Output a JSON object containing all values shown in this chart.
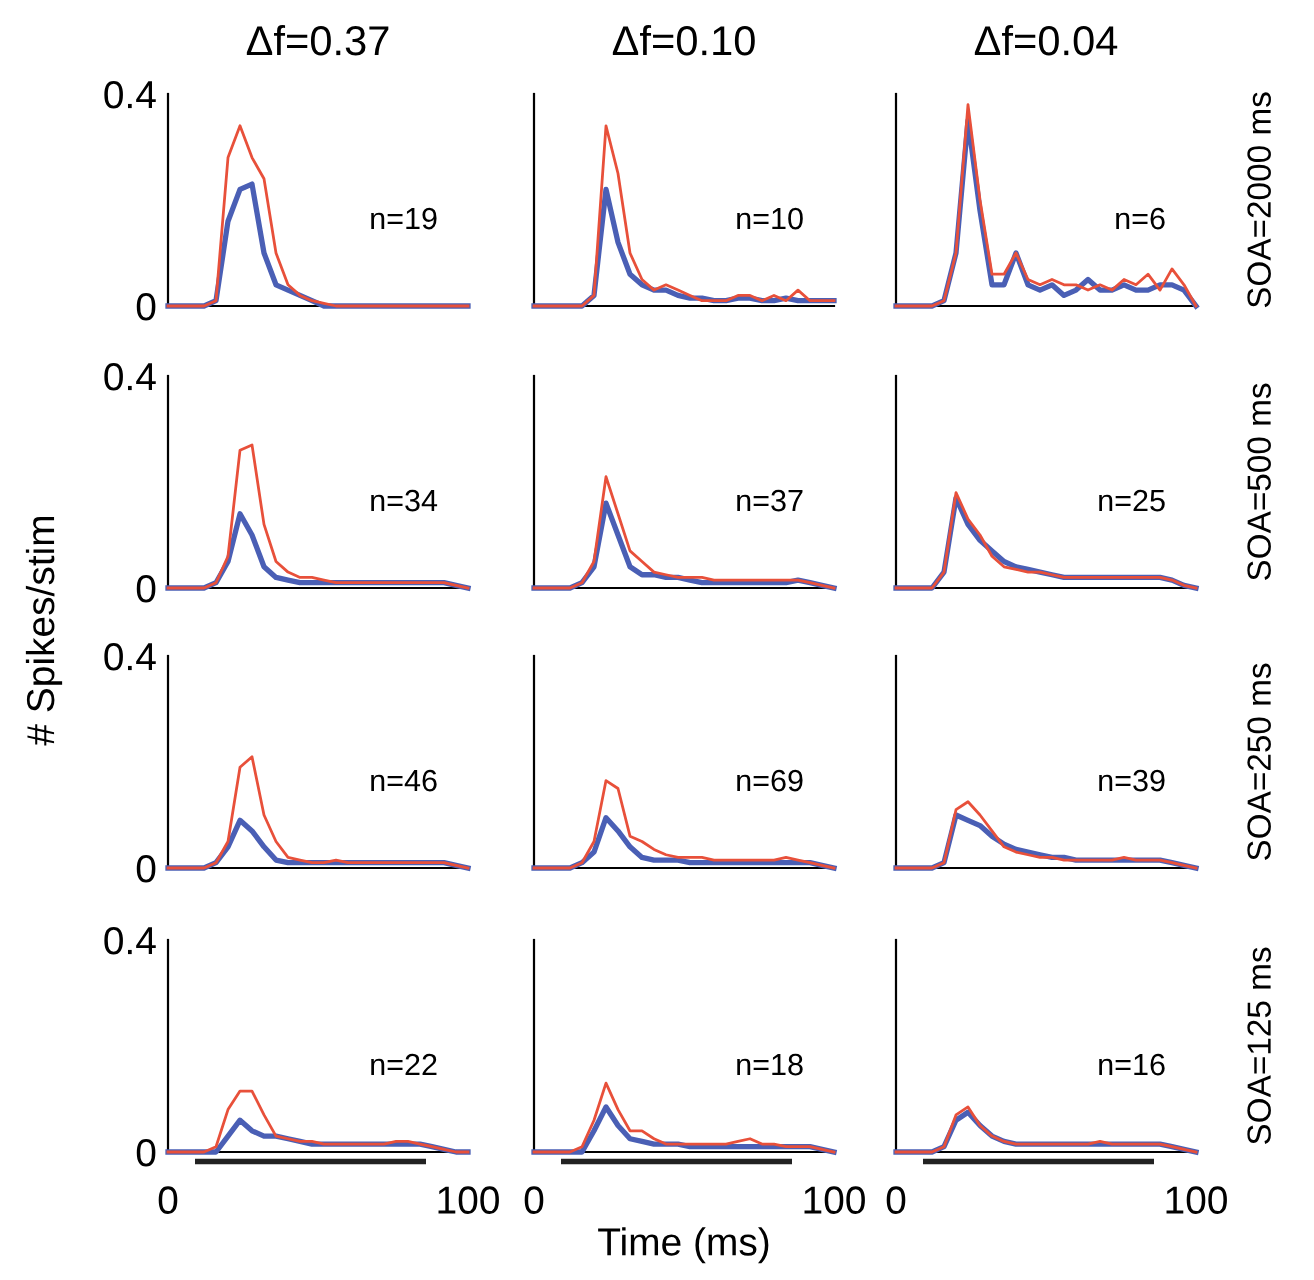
{
  "chart_data": [
    {
      "type": "line",
      "title": "Δf=0.37",
      "x": [
        0,
        4,
        8,
        12,
        16,
        20,
        24,
        28,
        32,
        36,
        40,
        44,
        48,
        52,
        56,
        60,
        64,
        68,
        72,
        76,
        80,
        84,
        88,
        92,
        96,
        100
      ],
      "xlim": [
        0,
        100
      ],
      "ylim": [
        0,
        0.4
      ],
      "xticks": [
        0,
        100
      ],
      "yticks": [
        0,
        0.4
      ],
      "tick_labels": "y",
      "annotations": [
        "n=19"
      ],
      "series": [
        {
          "color": "#e8503a",
          "values": [
            0,
            0,
            0,
            0,
            0.01,
            0.28,
            0.34,
            0.28,
            0.24,
            0.1,
            0.04,
            0.02,
            0.01,
            0.005,
            0,
            0,
            0,
            0,
            0,
            0,
            0,
            0,
            0,
            0,
            0,
            0
          ]
        },
        {
          "color": "#4a5fb5",
          "values": [
            0,
            0,
            0,
            0,
            0.01,
            0.16,
            0.22,
            0.23,
            0.1,
            0.04,
            0.03,
            0.02,
            0.01,
            0,
            0,
            0,
            0,
            0,
            0,
            0,
            0,
            0,
            0,
            0,
            0,
            0
          ]
        }
      ]
    },
    {
      "type": "line",
      "title": "Δf=0.10",
      "x": [
        0,
        4,
        8,
        12,
        16,
        20,
        24,
        28,
        32,
        36,
        40,
        44,
        48,
        52,
        56,
        60,
        64,
        68,
        72,
        76,
        80,
        84,
        88,
        92,
        96,
        100
      ],
      "xlim": [
        0,
        100
      ],
      "ylim": [
        0,
        0.4
      ],
      "xticks": [
        0,
        100
      ],
      "yticks": [
        0,
        0.4
      ],
      "tick_labels": false,
      "annotations": [
        "n=10"
      ],
      "series": [
        {
          "color": "#e8503a",
          "values": [
            0,
            0,
            0,
            0,
            0,
            0.02,
            0.34,
            0.25,
            0.1,
            0.05,
            0.03,
            0.04,
            0.03,
            0.02,
            0.01,
            0.01,
            0.01,
            0.02,
            0.02,
            0.01,
            0.02,
            0.01,
            0.03,
            0.01,
            0.01,
            0.01
          ]
        },
        {
          "color": "#4a5fb5",
          "values": [
            0,
            0,
            0,
            0,
            0,
            0.02,
            0.22,
            0.12,
            0.06,
            0.04,
            0.03,
            0.03,
            0.02,
            0.015,
            0.015,
            0.01,
            0.01,
            0.015,
            0.015,
            0.01,
            0.01,
            0.015,
            0.01,
            0.01,
            0.01,
            0.01
          ]
        }
      ]
    },
    {
      "type": "line",
      "title": "Δf=0.04",
      "x": [
        0,
        4,
        8,
        12,
        16,
        20,
        24,
        28,
        32,
        36,
        40,
        44,
        48,
        52,
        56,
        60,
        64,
        68,
        72,
        76,
        80,
        84,
        88,
        92,
        96,
        100
      ],
      "xlim": [
        0,
        100
      ],
      "ylim": [
        0,
        0.4
      ],
      "xticks": [
        0,
        100
      ],
      "yticks": [
        0,
        0.4
      ],
      "tick_labels": false,
      "annotations": [
        "n=6",
        "SOA=2000 ms"
      ],
      "series": [
        {
          "color": "#e8503a",
          "values": [
            0,
            0,
            0,
            0,
            0.01,
            0.1,
            0.38,
            0.2,
            0.06,
            0.06,
            0.1,
            0.05,
            0.04,
            0.05,
            0.04,
            0.04,
            0.03,
            0.04,
            0.03,
            0.05,
            0.04,
            0.06,
            0.03,
            0.07,
            0.04,
            0
          ]
        },
        {
          "color": "#4a5fb5",
          "values": [
            0,
            0,
            0,
            0,
            0.01,
            0.1,
            0.35,
            0.18,
            0.04,
            0.04,
            0.1,
            0.04,
            0.03,
            0.04,
            0.02,
            0.03,
            0.05,
            0.03,
            0.03,
            0.04,
            0.03,
            0.03,
            0.04,
            0.04,
            0.03,
            0
          ]
        }
      ]
    },
    {
      "type": "line",
      "x": [
        0,
        4,
        8,
        12,
        16,
        20,
        24,
        28,
        32,
        36,
        40,
        44,
        48,
        52,
        56,
        60,
        64,
        68,
        72,
        76,
        80,
        84,
        88,
        92,
        96,
        100
      ],
      "xlim": [
        0,
        100
      ],
      "ylim": [
        0,
        0.4
      ],
      "xticks": [
        0,
        100
      ],
      "yticks": [
        0,
        0.4
      ],
      "tick_labels": "y",
      "annotations": [
        "n=34"
      ],
      "ylabel": "# Spikes/stim",
      "series": [
        {
          "color": "#e8503a",
          "values": [
            0,
            0,
            0,
            0,
            0.01,
            0.06,
            0.26,
            0.27,
            0.12,
            0.05,
            0.03,
            0.02,
            0.02,
            0.015,
            0.01,
            0.01,
            0.01,
            0.01,
            0.01,
            0.01,
            0.01,
            0.01,
            0.01,
            0.01,
            0.005,
            0
          ]
        },
        {
          "color": "#4a5fb5",
          "values": [
            0,
            0,
            0,
            0,
            0.01,
            0.05,
            0.14,
            0.1,
            0.04,
            0.02,
            0.015,
            0.01,
            0.01,
            0.01,
            0.01,
            0.01,
            0.01,
            0.01,
            0.01,
            0.01,
            0.01,
            0.01,
            0.01,
            0.01,
            0.005,
            0
          ]
        }
      ]
    },
    {
      "type": "line",
      "x": [
        0,
        4,
        8,
        12,
        16,
        20,
        24,
        28,
        32,
        36,
        40,
        44,
        48,
        52,
        56,
        60,
        64,
        68,
        72,
        76,
        80,
        84,
        88,
        92,
        96,
        100
      ],
      "xlim": [
        0,
        100
      ],
      "ylim": [
        0,
        0.4
      ],
      "xticks": [
        0,
        100
      ],
      "yticks": [
        0,
        0.4
      ],
      "tick_labels": false,
      "annotations": [
        "n=37"
      ],
      "series": [
        {
          "color": "#e8503a",
          "values": [
            0,
            0,
            0,
            0,
            0.01,
            0.05,
            0.21,
            0.14,
            0.07,
            0.05,
            0.03,
            0.025,
            0.02,
            0.02,
            0.02,
            0.015,
            0.015,
            0.015,
            0.015,
            0.015,
            0.015,
            0.015,
            0.015,
            0.01,
            0.005,
            0
          ]
        },
        {
          "color": "#4a5fb5",
          "values": [
            0,
            0,
            0,
            0,
            0.01,
            0.04,
            0.16,
            0.1,
            0.04,
            0.025,
            0.025,
            0.02,
            0.02,
            0.015,
            0.01,
            0.01,
            0.01,
            0.01,
            0.01,
            0.01,
            0.01,
            0.01,
            0.015,
            0.01,
            0.005,
            0
          ]
        }
      ]
    },
    {
      "type": "line",
      "x": [
        0,
        4,
        8,
        12,
        16,
        20,
        24,
        28,
        32,
        36,
        40,
        44,
        48,
        52,
        56,
        60,
        64,
        68,
        72,
        76,
        80,
        84,
        88,
        92,
        96,
        100
      ],
      "xlim": [
        0,
        100
      ],
      "ylim": [
        0,
        0.4
      ],
      "xticks": [
        0,
        100
      ],
      "yticks": [
        0,
        0.4
      ],
      "tick_labels": false,
      "annotations": [
        "n=25",
        "SOA=500 ms"
      ],
      "series": [
        {
          "color": "#e8503a",
          "values": [
            0,
            0,
            0,
            0,
            0.03,
            0.18,
            0.13,
            0.1,
            0.06,
            0.04,
            0.035,
            0.03,
            0.03,
            0.025,
            0.02,
            0.02,
            0.02,
            0.02,
            0.02,
            0.02,
            0.02,
            0.02,
            0.02,
            0.015,
            0.005,
            0
          ]
        },
        {
          "color": "#4a5fb5",
          "values": [
            0,
            0,
            0,
            0,
            0.03,
            0.17,
            0.12,
            0.09,
            0.07,
            0.05,
            0.04,
            0.035,
            0.03,
            0.025,
            0.02,
            0.02,
            0.02,
            0.02,
            0.02,
            0.02,
            0.02,
            0.02,
            0.02,
            0.015,
            0.005,
            0
          ]
        }
      ]
    },
    {
      "type": "line",
      "x": [
        0,
        4,
        8,
        12,
        16,
        20,
        24,
        28,
        32,
        36,
        40,
        44,
        48,
        52,
        56,
        60,
        64,
        68,
        72,
        76,
        80,
        84,
        88,
        92,
        96,
        100
      ],
      "xlim": [
        0,
        100
      ],
      "ylim": [
        0,
        0.4
      ],
      "xticks": [
        0,
        100
      ],
      "yticks": [
        0,
        0.4
      ],
      "tick_labels": "y",
      "annotations": [
        "n=46"
      ],
      "series": [
        {
          "color": "#e8503a",
          "values": [
            0,
            0,
            0,
            0,
            0.01,
            0.05,
            0.19,
            0.21,
            0.1,
            0.05,
            0.02,
            0.015,
            0.01,
            0.01,
            0.015,
            0.01,
            0.01,
            0.01,
            0.01,
            0.01,
            0.01,
            0.01,
            0.01,
            0.01,
            0.005,
            0
          ]
        },
        {
          "color": "#4a5fb5",
          "values": [
            0,
            0,
            0,
            0,
            0.01,
            0.04,
            0.09,
            0.07,
            0.04,
            0.015,
            0.01,
            0.01,
            0.01,
            0.01,
            0.01,
            0.01,
            0.01,
            0.01,
            0.01,
            0.01,
            0.01,
            0.01,
            0.01,
            0.01,
            0.005,
            0
          ]
        }
      ]
    },
    {
      "type": "line",
      "x": [
        0,
        4,
        8,
        12,
        16,
        20,
        24,
        28,
        32,
        36,
        40,
        44,
        48,
        52,
        56,
        60,
        64,
        68,
        72,
        76,
        80,
        84,
        88,
        92,
        96,
        100
      ],
      "xlim": [
        0,
        100
      ],
      "ylim": [
        0,
        0.4
      ],
      "xticks": [
        0,
        100
      ],
      "yticks": [
        0,
        0.4
      ],
      "tick_labels": false,
      "annotations": [
        "n=69"
      ],
      "series": [
        {
          "color": "#e8503a",
          "values": [
            0,
            0,
            0,
            0,
            0.01,
            0.05,
            0.165,
            0.15,
            0.06,
            0.05,
            0.035,
            0.025,
            0.02,
            0.02,
            0.02,
            0.015,
            0.015,
            0.015,
            0.015,
            0.015,
            0.015,
            0.02,
            0.015,
            0.01,
            0.005,
            0
          ]
        },
        {
          "color": "#4a5fb5",
          "values": [
            0,
            0,
            0,
            0,
            0.01,
            0.03,
            0.095,
            0.07,
            0.04,
            0.02,
            0.015,
            0.015,
            0.015,
            0.01,
            0.01,
            0.01,
            0.01,
            0.01,
            0.01,
            0.01,
            0.01,
            0.01,
            0.01,
            0.01,
            0.005,
            0
          ]
        }
      ]
    },
    {
      "type": "line",
      "x": [
        0,
        4,
        8,
        12,
        16,
        20,
        24,
        28,
        32,
        36,
        40,
        44,
        48,
        52,
        56,
        60,
        64,
        68,
        72,
        76,
        80,
        84,
        88,
        92,
        96,
        100
      ],
      "xlim": [
        0,
        100
      ],
      "ylim": [
        0,
        0.4
      ],
      "xticks": [
        0,
        100
      ],
      "yticks": [
        0,
        0.4
      ],
      "tick_labels": false,
      "annotations": [
        "n=39",
        "SOA=250 ms"
      ],
      "series": [
        {
          "color": "#e8503a",
          "values": [
            0,
            0,
            0,
            0,
            0.01,
            0.11,
            0.125,
            0.1,
            0.07,
            0.04,
            0.03,
            0.025,
            0.02,
            0.02,
            0.015,
            0.015,
            0.015,
            0.015,
            0.015,
            0.02,
            0.015,
            0.015,
            0.015,
            0.01,
            0.005,
            0
          ]
        },
        {
          "color": "#4a5fb5",
          "values": [
            0,
            0,
            0,
            0,
            0.01,
            0.1,
            0.09,
            0.08,
            0.06,
            0.045,
            0.035,
            0.03,
            0.025,
            0.02,
            0.02,
            0.015,
            0.015,
            0.015,
            0.015,
            0.015,
            0.015,
            0.015,
            0.015,
            0.01,
            0.005,
            0
          ]
        }
      ]
    },
    {
      "type": "line",
      "x": [
        0,
        4,
        8,
        12,
        16,
        20,
        24,
        28,
        32,
        36,
        40,
        44,
        48,
        52,
        56,
        60,
        64,
        68,
        72,
        76,
        80,
        84,
        88,
        92,
        96,
        100
      ],
      "xlim": [
        0,
        100
      ],
      "ylim": [
        0,
        0.4
      ],
      "xticks": [
        0,
        100
      ],
      "yticks": [
        0,
        0.4
      ],
      "annotations": [
        "n=22"
      ],
      "series": [
        {
          "color": "#e8503a",
          "values": [
            0,
            0,
            0,
            0,
            0.01,
            0.08,
            0.115,
            0.115,
            0.07,
            0.03,
            0.025,
            0.02,
            0.02,
            0.015,
            0.015,
            0.015,
            0.015,
            0.015,
            0.015,
            0.02,
            0.02,
            0.015,
            0.01,
            0.005,
            0,
            0
          ]
        },
        {
          "color": "#4a5fb5",
          "values": [
            0,
            0,
            0,
            0,
            0,
            0.03,
            0.06,
            0.04,
            0.03,
            0.03,
            0.025,
            0.02,
            0.015,
            0.015,
            0.015,
            0.015,
            0.015,
            0.015,
            0.015,
            0.015,
            0.015,
            0.015,
            0.01,
            0.005,
            0,
            0
          ]
        }
      ]
    },
    {
      "type": "line",
      "x": [
        0,
        4,
        8,
        12,
        16,
        20,
        24,
        28,
        32,
        36,
        40,
        44,
        48,
        52,
        56,
        60,
        64,
        68,
        72,
        76,
        80,
        84,
        88,
        92,
        96,
        100
      ],
      "xlim": [
        0,
        100
      ],
      "ylim": [
        0,
        0.4
      ],
      "xticks": [
        0,
        100
      ],
      "yticks": [
        0,
        0.4
      ],
      "tick_labels": "x",
      "annotations": [
        "n=18"
      ],
      "xlabel": "Time (ms)",
      "series": [
        {
          "color": "#e8503a",
          "values": [
            0,
            0,
            0,
            0,
            0.01,
            0.06,
            0.13,
            0.08,
            0.04,
            0.04,
            0.025,
            0.015,
            0.015,
            0.015,
            0.015,
            0.015,
            0.015,
            0.02,
            0.025,
            0.015,
            0.015,
            0.01,
            0.01,
            0.01,
            0.005,
            0
          ]
        },
        {
          "color": "#4a5fb5",
          "values": [
            0,
            0,
            0,
            0,
            0,
            0.04,
            0.085,
            0.05,
            0.025,
            0.02,
            0.015,
            0.015,
            0.015,
            0.01,
            0.01,
            0.01,
            0.01,
            0.01,
            0.01,
            0.01,
            0.01,
            0.01,
            0.01,
            0.01,
            0.005,
            0
          ]
        }
      ]
    },
    {
      "type": "line",
      "x": [
        0,
        4,
        8,
        12,
        16,
        20,
        24,
        28,
        32,
        36,
        40,
        44,
        48,
        52,
        56,
        60,
        64,
        68,
        72,
        76,
        80,
        84,
        88,
        92,
        96,
        100
      ],
      "xlim": [
        0,
        100
      ],
      "ylim": [
        0,
        0.4
      ],
      "xticks": [
        0,
        100
      ],
      "yticks": [
        0,
        0.4
      ],
      "tick_labels": "x",
      "annotations": [
        "n=16",
        "SOA=125 ms"
      ],
      "series": [
        {
          "color": "#e8503a",
          "values": [
            0,
            0,
            0,
            0,
            0.01,
            0.07,
            0.085,
            0.05,
            0.03,
            0.02,
            0.015,
            0.015,
            0.015,
            0.015,
            0.015,
            0.015,
            0.015,
            0.02,
            0.015,
            0.015,
            0.015,
            0.015,
            0.015,
            0.01,
            0.005,
            0
          ]
        },
        {
          "color": "#4a5fb5",
          "values": [
            0,
            0,
            0,
            0,
            0.01,
            0.06,
            0.075,
            0.05,
            0.03,
            0.02,
            0.015,
            0.015,
            0.015,
            0.015,
            0.015,
            0.015,
            0.015,
            0.015,
            0.015,
            0.015,
            0.015,
            0.015,
            0.015,
            0.01,
            0.005,
            0
          ]
        }
      ]
    }
  ]
}
